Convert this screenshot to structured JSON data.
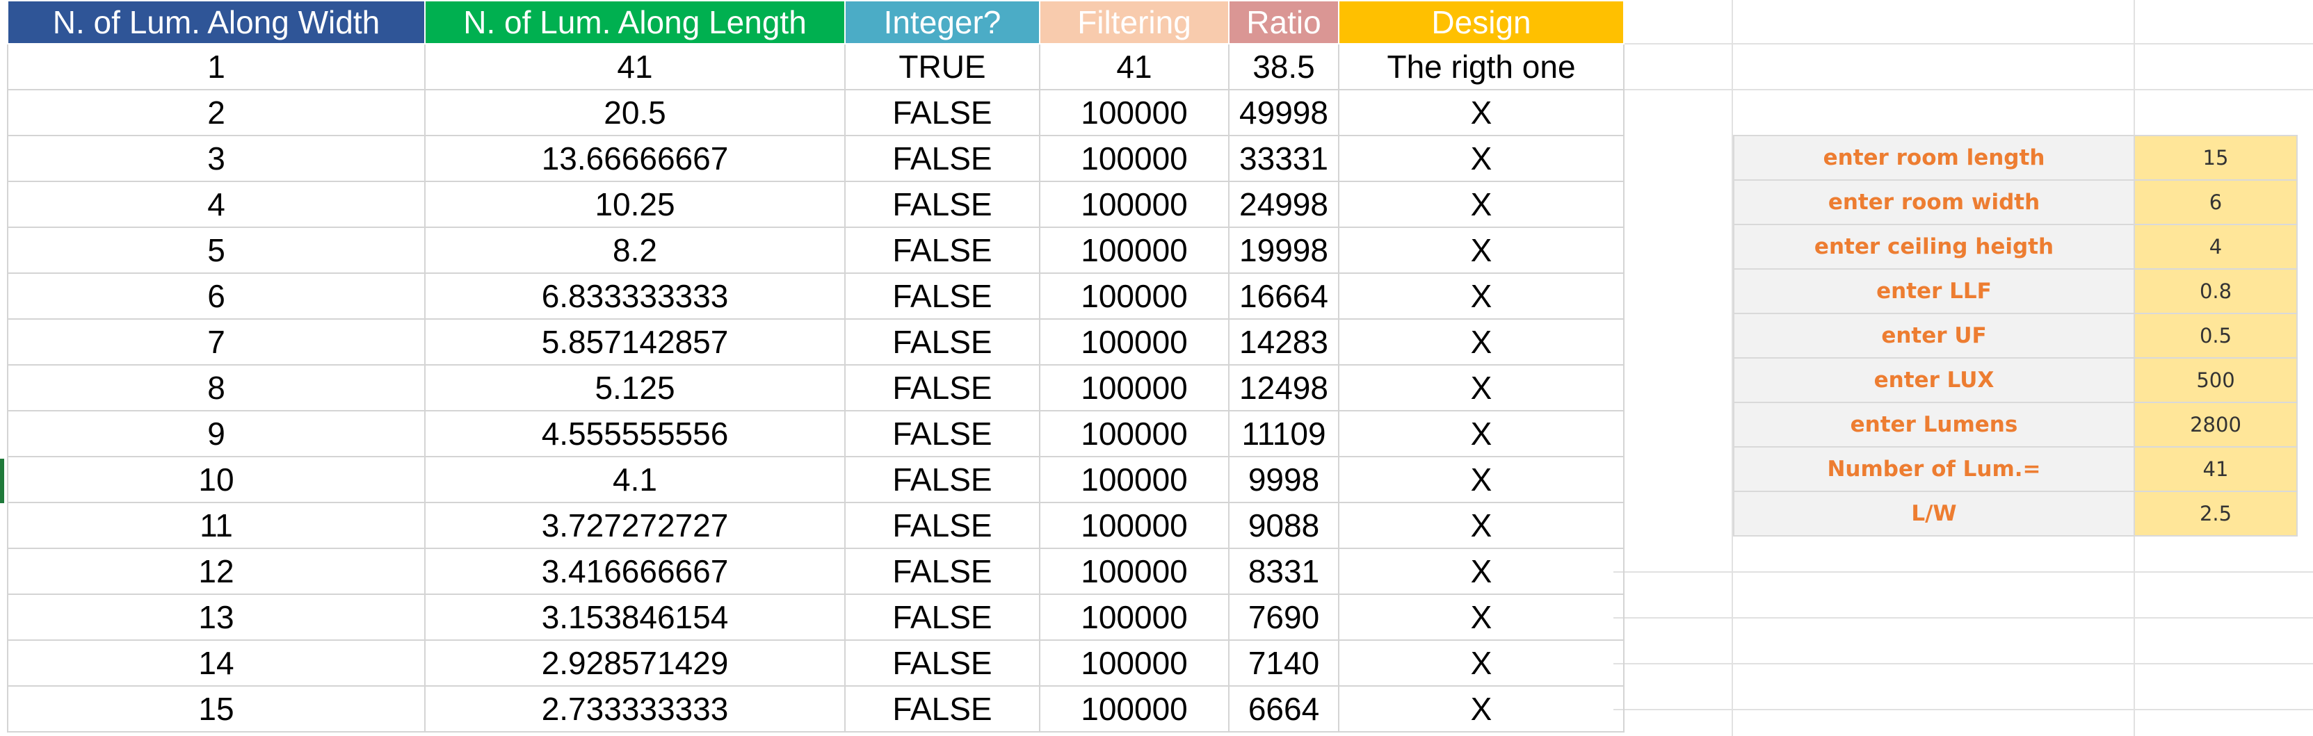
{
  "columns": [
    "N. of Lum. Along Width",
    "N. of Lum. Along Length",
    "Integer?",
    "Filtering",
    "Ratio",
    "Design"
  ],
  "rows": [
    [
      "1",
      "41",
      "TRUE",
      "41",
      "38.5",
      "The rigth one"
    ],
    [
      "2",
      "20.5",
      "FALSE",
      "100000",
      "49998",
      "X"
    ],
    [
      "3",
      "13.66666667",
      "FALSE",
      "100000",
      "33331",
      "X"
    ],
    [
      "4",
      "10.25",
      "FALSE",
      "100000",
      "24998",
      "X"
    ],
    [
      "5",
      "8.2",
      "FALSE",
      "100000",
      "19998",
      "X"
    ],
    [
      "6",
      "6.833333333",
      "FALSE",
      "100000",
      "16664",
      "X"
    ],
    [
      "7",
      "5.857142857",
      "FALSE",
      "100000",
      "14283",
      "X"
    ],
    [
      "8",
      "5.125",
      "FALSE",
      "100000",
      "12498",
      "X"
    ],
    [
      "9",
      "4.555555556",
      "FALSE",
      "100000",
      "11109",
      "X"
    ],
    [
      "10",
      "4.1",
      "FALSE",
      "100000",
      "9998",
      "X"
    ],
    [
      "11",
      "3.727272727",
      "FALSE",
      "100000",
      "9088",
      "X"
    ],
    [
      "12",
      "3.416666667",
      "FALSE",
      "100000",
      "8331",
      "X"
    ],
    [
      "13",
      "3.153846154",
      "FALSE",
      "100000",
      "7690",
      "X"
    ],
    [
      "14",
      "2.928571429",
      "FALSE",
      "100000",
      "7140",
      "X"
    ],
    [
      "15",
      "2.733333333",
      "FALSE",
      "100000",
      "6664",
      "X"
    ]
  ],
  "params": [
    {
      "label": "enter room length",
      "value": "15"
    },
    {
      "label": "enter room width",
      "value": "6"
    },
    {
      "label": "enter ceiling heigth",
      "value": "4"
    },
    {
      "label": "enter LLF",
      "value": "0.8"
    },
    {
      "label": "enter UF",
      "value": "0.5"
    },
    {
      "label": "enter LUX",
      "value": "500"
    },
    {
      "label": "enter Lumens",
      "value": "2800"
    },
    {
      "label": "Number of Lum.=",
      "value": "41"
    },
    {
      "label": "L/W",
      "value": "2.5"
    }
  ],
  "colors": {
    "col1_header": "#2f5597",
    "col2_header": "#00b050",
    "col3_header": "#4bacc6",
    "col4_header": "#f8cbad",
    "col5_header": "#da9694",
    "col6_header": "#ffc000",
    "param_label_text": "#ed7d31",
    "param_value_fill": "#ffe699"
  }
}
